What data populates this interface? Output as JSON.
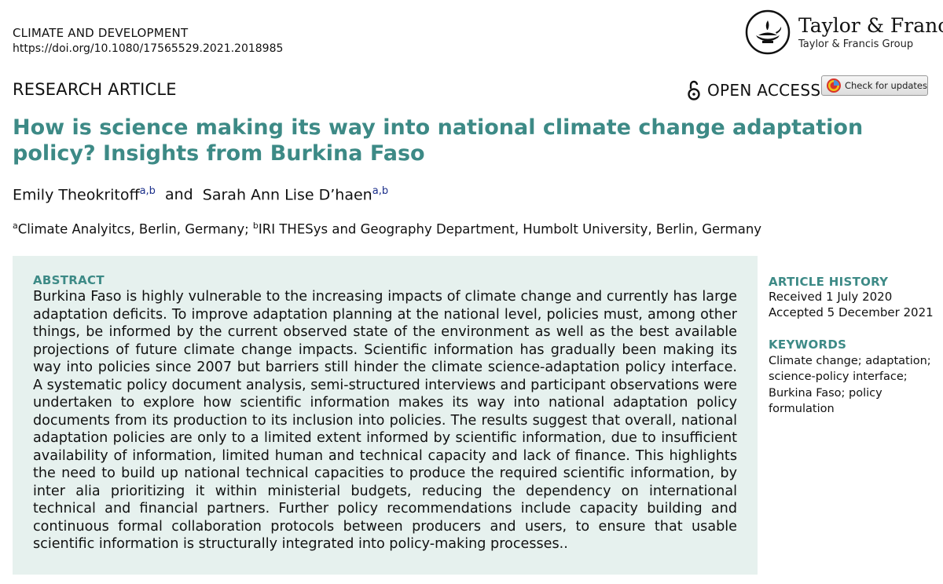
{
  "header": {
    "journal": "CLIMATE AND DEVELOPMENT",
    "doi": "https://doi.org/10.1080/17565529.2021.2018985"
  },
  "publisher": {
    "name": "Taylor & Francis",
    "group": "Taylor & Francis Group",
    "logo_icon": "lamp-logo-icon"
  },
  "article_type": "RESEARCH ARTICLE",
  "open_access": {
    "label": "OPEN ACCESS",
    "icon": "open-lock-icon"
  },
  "check_updates": {
    "label": "Check for updates",
    "icon": "crossmark-icon"
  },
  "title": "How is science making its way into national climate change adaptation policy? Insights from Burkina Faso",
  "authors": [
    {
      "name": "Emily Theokritoff",
      "affil": "a,b"
    },
    {
      "connector": "and"
    },
    {
      "name": "Sarah Ann Lise D’haen",
      "affil": "a,b"
    }
  ],
  "affiliations": [
    {
      "mark": "a",
      "text": "Climate Analyitcs, Berlin, Germany; "
    },
    {
      "mark": "b",
      "text": "IRI THESys and Geography Department, Humbolt University, Berlin, Germany"
    }
  ],
  "abstract": {
    "heading": "ABSTRACT",
    "text": "Burkina Faso is highly vulnerable to the increasing impacts of climate change and currently has large adaptation deficits. To improve adaptation planning at the national level, policies must, among other things, be informed by the current observed state of the environment as well as the best available projections of future climate change impacts. Scientific information has gradually been making its way into policies since 2007 but barriers still hinder the climate science-adaptation policy interface. A systematic policy document analysis, semi-structured interviews and participant observations were undertaken to explore how scientific information makes its way into national adaptation policy documents from its production to its inclusion into policies. The results suggest that overall, national adaptation policies are only to a limited extent informed by scientific information, due to insufficient availability of information, limited human and technical capacity and lack of finance. This highlights the need to build up national technical capacities to produce the required scientific information, by inter alia prioritizing it within ministerial budgets, reducing the dependency on international technical and financial partners. Further policy recommendations include capacity building and continuous formal collaboration protocols between producers and users, to ensure that usable scientific information is structurally integrated into policy-making processes.."
  },
  "history": {
    "heading": "ARTICLE HISTORY",
    "received": "Received 1 July 2020",
    "accepted": "Accepted 5 December 2021"
  },
  "keywords": {
    "heading": "KEYWORDS",
    "lines": [
      "Climate change; adaptation;",
      "science-policy interface;",
      "Burkina Faso; policy",
      "formulation"
    ]
  },
  "colors": {
    "accent": "#3d8a86",
    "abstract_bg": "#e6f1ee",
    "superscript": "#1b2f8a"
  }
}
